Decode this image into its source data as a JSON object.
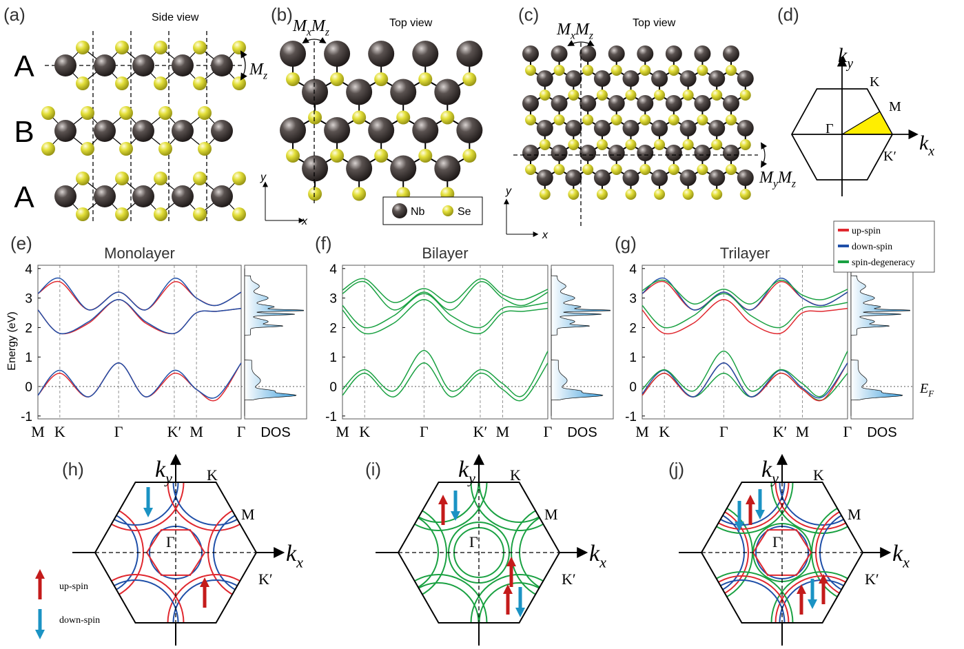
{
  "panel_a": {
    "label": "(a)",
    "title": "Side view",
    "layers": [
      "A",
      "B",
      "A"
    ],
    "mirror": [
      {
        "base": "M",
        "sub": "z"
      }
    ]
  },
  "panel_b": {
    "label": "(b)",
    "title": "Top view",
    "mirror": [
      {
        "base": "M",
        "sub": "x"
      },
      {
        "base": "M",
        "sub": "z"
      }
    ],
    "axes": [
      "y",
      "x"
    ],
    "legend": [
      "Nb",
      "Se"
    ]
  },
  "panel_c": {
    "label": "(c)",
    "title": "Top view",
    "mirror_vertical": [
      {
        "base": "M",
        "sub": "x"
      },
      {
        "base": "M",
        "sub": "z"
      }
    ],
    "mirror_horizontal": [
      {
        "base": "M",
        "sub": "y"
      },
      {
        "base": "M",
        "sub": "z"
      }
    ],
    "axes": [
      "y",
      "x"
    ]
  },
  "panel_d": {
    "label": "(d)",
    "kx": {
      "base": "k",
      "sub": "x"
    },
    "ky": {
      "base": "k",
      "sub": "y"
    },
    "points": [
      "K",
      "M",
      "Γ",
      "K′"
    ]
  },
  "bands": {
    "y_axis_label": "Energy (eV)",
    "yticks": [
      4,
      3,
      2,
      1,
      0,
      -1
    ],
    "fermi_level": {
      "base": "E",
      "sub": "F"
    },
    "legend": [
      "up-spin",
      "down-spin",
      "spin-degeneracy"
    ],
    "panels": [
      {
        "label": "(e)",
        "title": "Monolayer",
        "kpath": [
          "M",
          "K",
          "Γ",
          "K′",
          "M",
          "Γ"
        ],
        "dos": "DOS"
      },
      {
        "label": "(f)",
        "title": "Bilayer",
        "kpath": [
          "M",
          "K",
          "Γ",
          "K′",
          "M",
          "Γ"
        ],
        "dos": "DOS"
      },
      {
        "label": "(g)",
        "title": "Trilayer",
        "kpath": [
          "M",
          "K",
          "Γ",
          "K′",
          "M",
          "Γ"
        ],
        "dos": "DOS"
      }
    ]
  },
  "fermi_surfaces": {
    "kx": {
      "base": "k",
      "sub": "x"
    },
    "ky": {
      "base": "k",
      "sub": "y"
    },
    "points": [
      "K",
      "M",
      "Γ",
      "K′"
    ],
    "spin_legend": [
      "up-spin",
      "down-spin"
    ],
    "panels": [
      {
        "label": "(h)"
      },
      {
        "label": "(i)"
      },
      {
        "label": "(j)"
      }
    ]
  }
}
